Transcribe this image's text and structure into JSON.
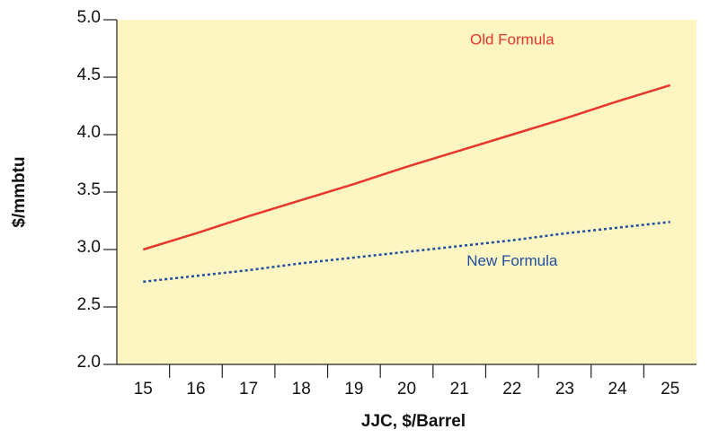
{
  "chart_data": {
    "type": "line",
    "categories": [
      "15",
      "16",
      "17",
      "18",
      "19",
      "20",
      "21",
      "22",
      "23",
      "24",
      "25"
    ],
    "series": [
      {
        "name": "Old Formula",
        "color": "#e8362b",
        "dash": false,
        "values": [
          3.0,
          3.14,
          3.29,
          3.43,
          3.57,
          3.72,
          3.86,
          4.0,
          4.14,
          4.29,
          4.43
        ]
      },
      {
        "name": "New Formula",
        "color": "#1f4ea0",
        "dash": true,
        "values": [
          2.72,
          2.77,
          2.82,
          2.88,
          2.93,
          2.98,
          3.03,
          3.08,
          3.14,
          3.19,
          3.24
        ]
      }
    ],
    "ylim": [
      2.0,
      5.0
    ],
    "yticks": [
      {
        "value": 2.0,
        "label": "2.0"
      },
      {
        "value": 2.5,
        "label": "2.5"
      },
      {
        "value": 3.0,
        "label": "3.0"
      },
      {
        "value": 3.5,
        "label": "3.5"
      },
      {
        "value": 4.0,
        "label": "4.0"
      },
      {
        "value": 4.5,
        "label": "4.5"
      },
      {
        "value": 5.0,
        "label": "5.0"
      }
    ],
    "xlabel": "JJC, $/Barrel",
    "ylabel": "$/mmbtu",
    "background": "#fdf6c3"
  }
}
